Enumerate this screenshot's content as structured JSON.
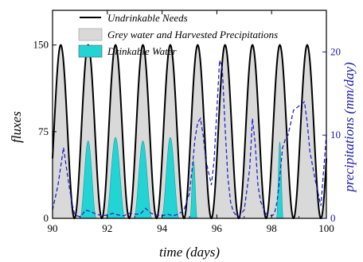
{
  "chart_data": {
    "type": "line",
    "xlabel": "time (days)",
    "ylabel": "fluxes",
    "y2label": "precipitations (mm/day)",
    "xlim": [
      90,
      100
    ],
    "ylim": [
      0,
      180
    ],
    "y2lim": [
      0,
      25
    ],
    "xticks": [
      "90",
      "92",
      "94",
      "96",
      "98",
      "100"
    ],
    "yticks": [
      "0",
      "75",
      "150"
    ],
    "y2ticks": [
      "0",
      "10",
      "20"
    ],
    "grid": false,
    "legend_position": "top",
    "legend": [
      "Undrinkable Needs",
      "Grey water and Harvested Precipitations",
      "Drinkable Water"
    ],
    "colors": {
      "undrinkable": "#000000",
      "grey_fill": "#d9d9d9",
      "drinkable_fill": "#22d4d4",
      "precip": "#2222cc",
      "right_axis": "#1a1aa8"
    },
    "series": [
      {
        "name": "Undrinkable Needs",
        "axis": "left",
        "style": "solid",
        "peaks_at": [
          90.3,
          91.3,
          92.3,
          93.3,
          94.3,
          95.3,
          96.3,
          97.3,
          98.3,
          99.3
        ],
        "peak_value": 150,
        "trough_value": 0
      },
      {
        "name": "Grey water and Harvested Precipitations",
        "axis": "left",
        "style": "fill",
        "note_source": "shaded between 0 and the Undrinkable Needs curve"
      },
      {
        "name": "Drinkable Water",
        "axis": "left",
        "style": "fill",
        "peaks_at": [
          91.3,
          92.3,
          93.3,
          94.3,
          95.15,
          98.3
        ],
        "peak_values": [
          67,
          70,
          67,
          70,
          50,
          66
        ],
        "half_widths": [
          0.3,
          0.35,
          0.33,
          0.32,
          0.13,
          0.12
        ]
      },
      {
        "name": "precipitations",
        "axis": "right",
        "style": "dashed",
        "x": [
          90.0,
          90.2,
          90.4,
          90.6,
          90.7,
          90.8,
          90.9,
          91.0,
          91.1,
          91.2,
          91.4,
          91.6,
          91.8,
          92.0,
          92.2,
          92.4,
          92.6,
          92.8,
          93.0,
          93.2,
          93.4,
          93.6,
          93.8,
          94.0,
          94.2,
          94.4,
          94.6,
          94.8,
          95.0,
          95.1,
          95.2,
          95.3,
          95.4,
          95.5,
          95.6,
          95.8,
          95.9,
          96.0,
          96.1,
          96.2,
          96.3,
          96.4,
          96.5,
          96.6,
          96.7,
          96.8,
          97.0,
          97.2,
          97.3,
          97.4,
          97.5,
          97.6,
          97.8,
          98.0,
          98.1,
          98.2,
          98.3,
          98.4,
          98.5,
          98.6,
          98.8,
          99.0,
          99.2,
          99.3,
          99.4,
          99.6,
          99.8,
          100.0
        ],
        "y": [
          1,
          4,
          8.5,
          4,
          2,
          0.5,
          0.3,
          0.2,
          0.5,
          1,
          0.8,
          0.5,
          0.3,
          0.4,
          0.6,
          0.4,
          0.3,
          0.6,
          0.5,
          0.5,
          1.2,
          0.6,
          0.4,
          0.3,
          0.5,
          0.3,
          0.5,
          1,
          3,
          6,
          9.5,
          11.5,
          12,
          10,
          7,
          4,
          7,
          13,
          19,
          18,
          11,
          5,
          2,
          0.8,
          0.4,
          0.2,
          1,
          6,
          12,
          9,
          4,
          2,
          0.5,
          0.3,
          0.5,
          2,
          5,
          8.5,
          9.5,
          10,
          13,
          13.5,
          14,
          11.5,
          8,
          4.5,
          1.5,
          10
        ]
      }
    ]
  }
}
